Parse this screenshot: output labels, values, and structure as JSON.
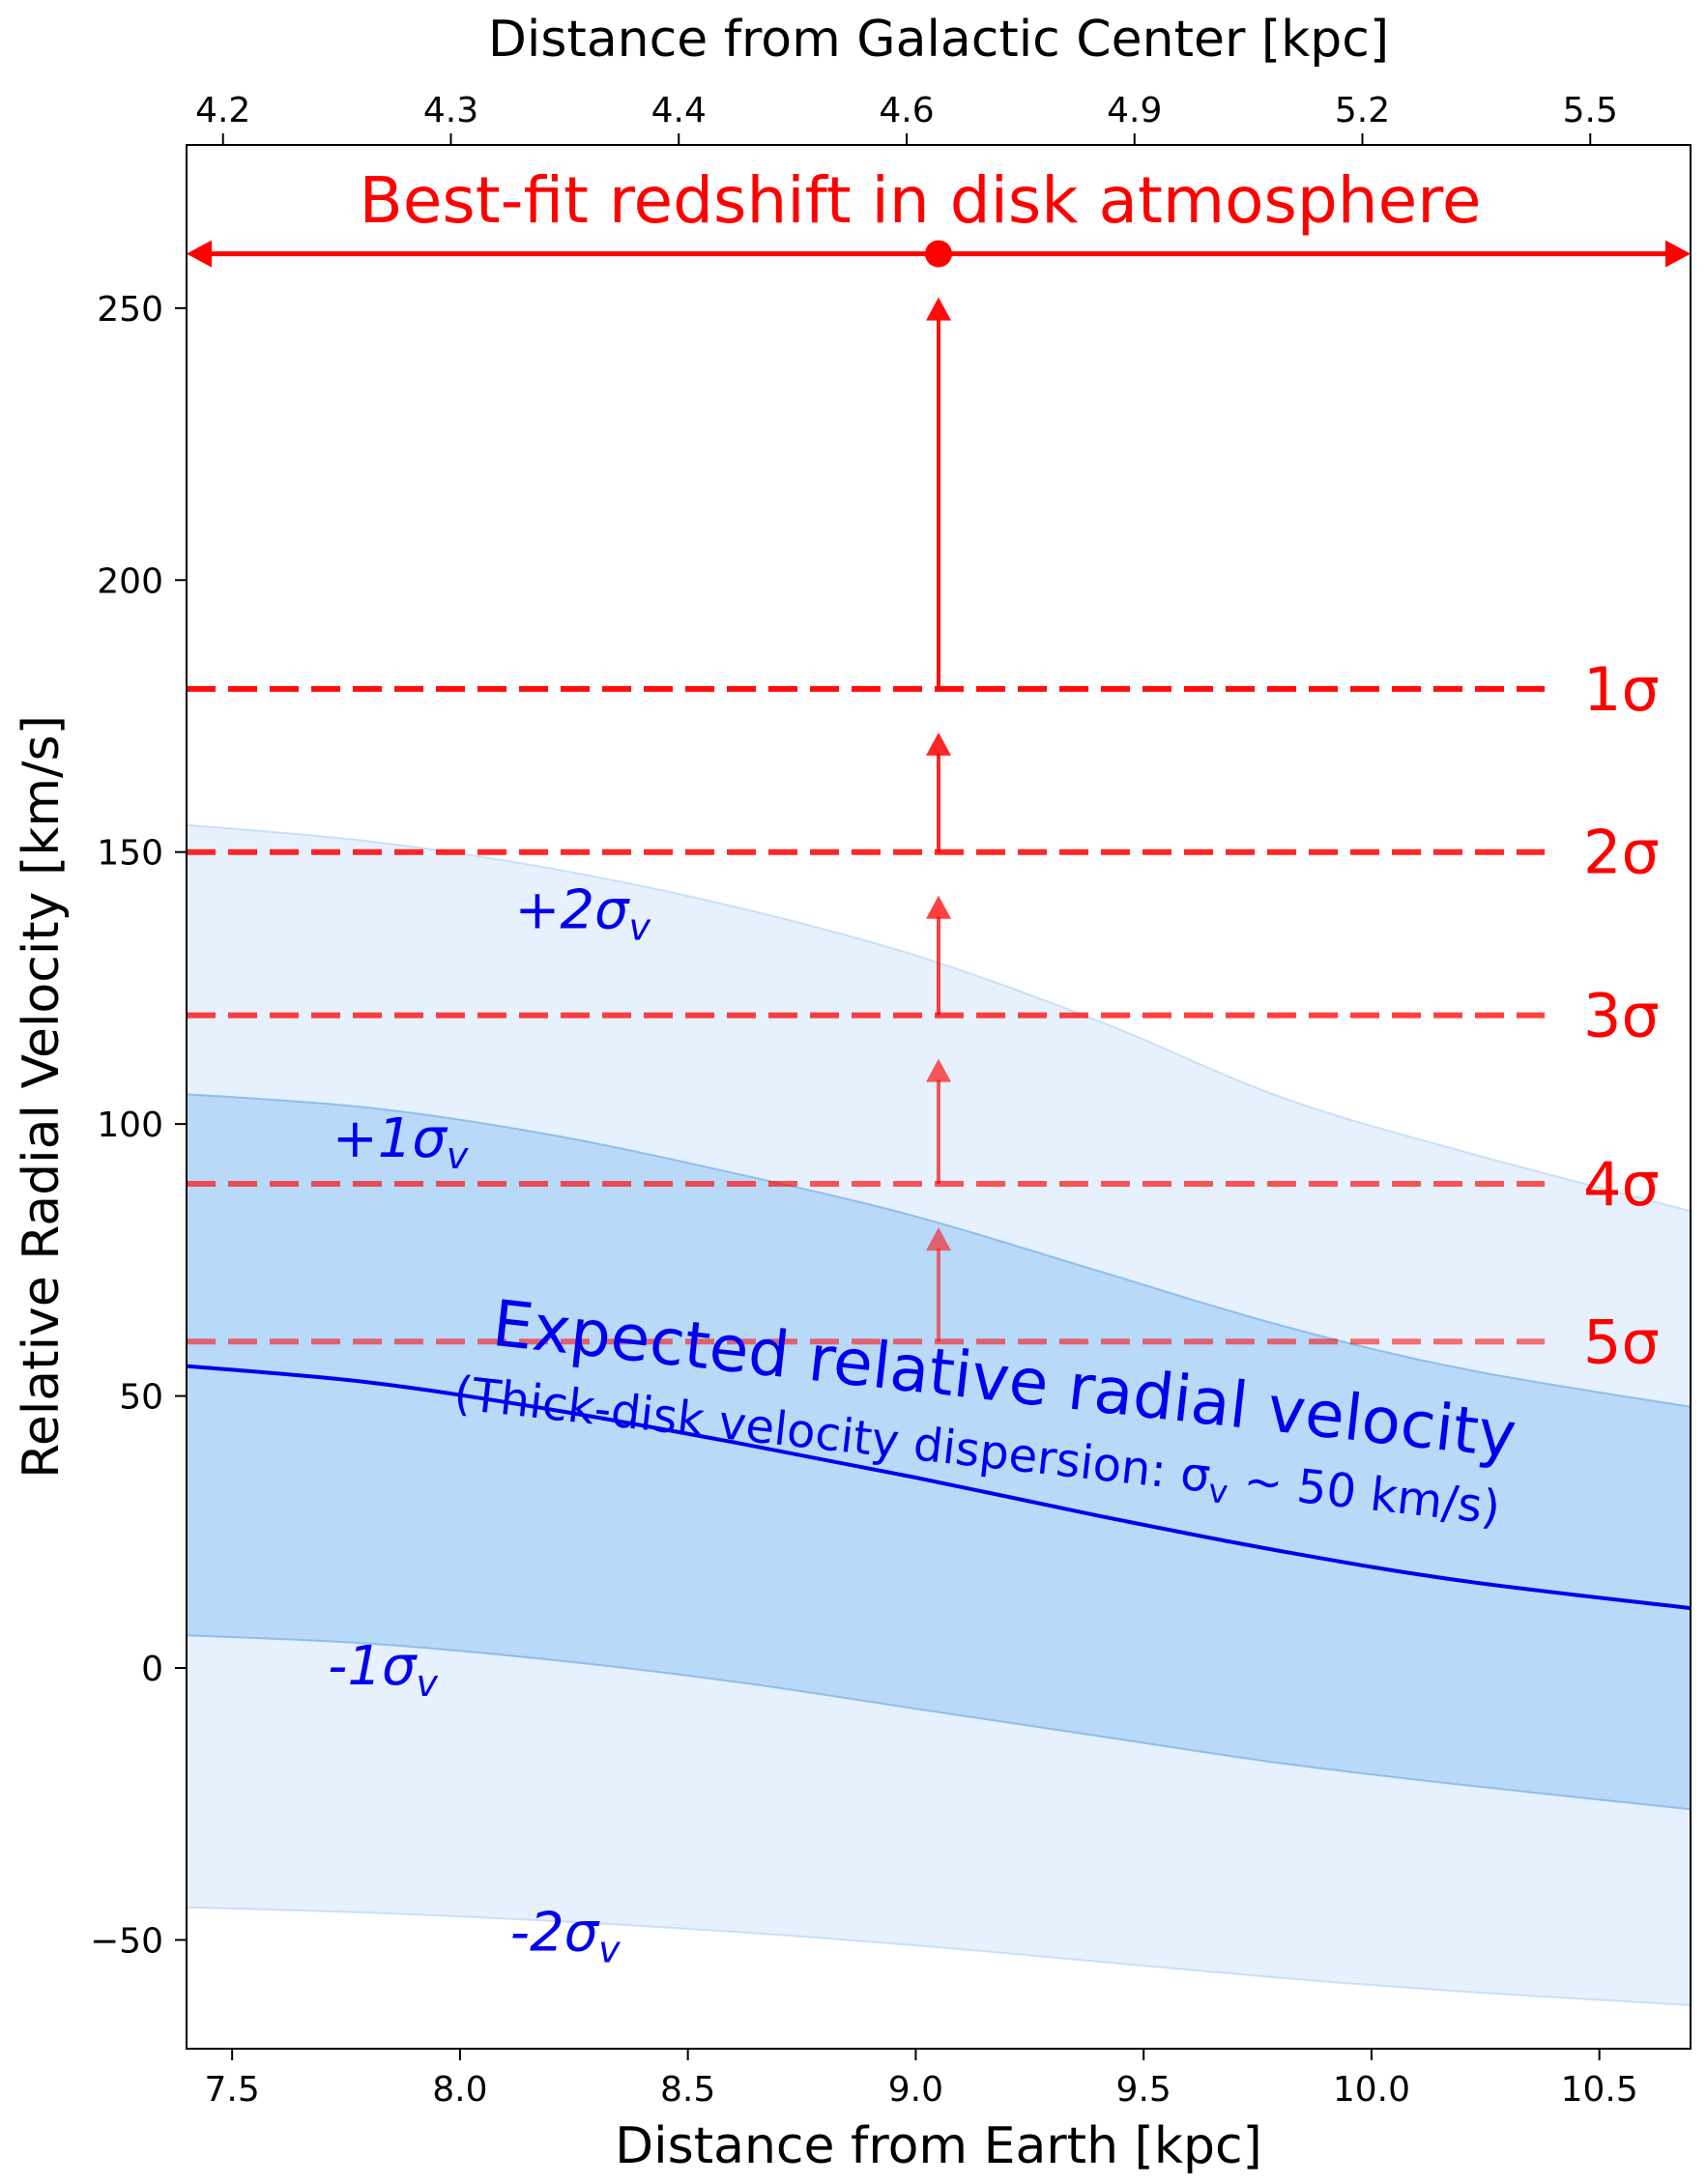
{
  "chart_data": {
    "type": "line",
    "xlabel": "Distance from Earth [kpc]",
    "ylabel": "Relative Radial Velocity [km/s]",
    "top_xlabel": "Distance from Galactic Center [kpc]",
    "xlim": [
      7.4,
      10.7
    ],
    "ylim": [
      -70,
      280
    ],
    "x_ticks": [
      7.5,
      8.0,
      8.5,
      9.0,
      9.5,
      10.0,
      10.5
    ],
    "x_tick_labels": [
      "7.5",
      "8.0",
      "8.5",
      "9.0",
      "9.5",
      "10.0",
      "10.5"
    ],
    "y_ticks": [
      -50,
      0,
      50,
      100,
      150,
      200,
      250
    ],
    "y_tick_labels": [
      "−50",
      "0",
      "50",
      "100",
      "150",
      "200",
      "250"
    ],
    "top_ticks": [
      {
        "x": 7.48,
        "label": "4.2"
      },
      {
        "x": 7.98,
        "label": "4.3"
      },
      {
        "x": 8.48,
        "label": "4.4"
      },
      {
        "x": 8.98,
        "label": "4.6"
      },
      {
        "x": 9.48,
        "label": "4.9"
      },
      {
        "x": 9.98,
        "label": "5.2"
      },
      {
        "x": 10.48,
        "label": "5.5"
      }
    ],
    "expected_curve": {
      "name": "Expected relative radial velocity",
      "color": "#0000ee",
      "x": [
        7.4,
        7.8,
        8.2,
        8.6,
        9.0,
        9.4,
        9.8,
        10.2,
        10.7
      ],
      "y": [
        55.5,
        52.5,
        47.5,
        41.5,
        35.0,
        28.0,
        21.5,
        16.0,
        11.0
      ]
    },
    "bands": [
      {
        "name": "±2σv band",
        "color": "#d6e8fb",
        "opacity": 0.6,
        "x": [
          7.4,
          7.8,
          8.2,
          8.6,
          9.0,
          9.4,
          9.8,
          10.2,
          10.7
        ],
        "upper": [
          155.0,
          152.0,
          147.0,
          140.0,
          131.0,
          119.0,
          105.0,
          95.0,
          84.0
        ],
        "lower": [
          -44.0,
          -45.0,
          -46.5,
          -48.5,
          -51.0,
          -54.0,
          -57.0,
          -59.5,
          -62.0
        ]
      },
      {
        "name": "±1σv band",
        "color": "#aad0f7",
        "opacity": 0.75,
        "x": [
          7.4,
          7.8,
          8.2,
          8.6,
          9.0,
          9.4,
          9.8,
          10.2,
          10.7
        ],
        "upper": [
          105.5,
          103.0,
          98.0,
          91.0,
          83.0,
          73.0,
          63.0,
          55.0,
          48.0
        ],
        "lower": [
          6.0,
          4.5,
          1.5,
          -2.5,
          -7.5,
          -12.5,
          -17.5,
          -21.5,
          -26.0
        ]
      }
    ],
    "band_border_color": "#7fb4e8",
    "band_labels": [
      {
        "text": "+2σ",
        "sub": "v",
        "x": 8.12,
        "y": 136
      },
      {
        "text": "+1σ",
        "sub": "v",
        "x": 7.72,
        "y": 94
      },
      {
        "text": "-1σ",
        "sub": "v",
        "x": 7.71,
        "y": -3
      },
      {
        "text": "-2σ",
        "sub": "v",
        "x": 8.11,
        "y": -52
      }
    ],
    "curve_annotation": {
      "title": "Expected relative radial velocity",
      "subtitle_prefix": "(Thick-disk velocity dispersion: σ",
      "subtitle_sub": "v",
      "subtitle_suffix": " ~ 50 km/s)",
      "color": "#0000ee",
      "x": 9.18,
      "y": 42,
      "angle_deg": 6.3
    },
    "best_fit": {
      "label": "Best-fit redshift in disk atmosphere",
      "color": "#ff0000",
      "x": 9.05,
      "y": 260,
      "arrow_y": 260
    },
    "sigma_levels": [
      {
        "label": "1σ",
        "y": 180,
        "alpha": 0.95,
        "arrow_to": 252
      },
      {
        "label": "2σ",
        "y": 150,
        "alpha": 0.85,
        "arrow_to": 172
      },
      {
        "label": "3σ",
        "y": 120,
        "alpha": 0.75,
        "arrow_to": 142
      },
      {
        "label": "4σ",
        "y": 89,
        "alpha": 0.65,
        "arrow_to": 112
      },
      {
        "label": "5σ",
        "y": 60,
        "alpha": 0.55,
        "arrow_to": 81
      }
    ],
    "sigma_line_x_end": 10.38
  }
}
